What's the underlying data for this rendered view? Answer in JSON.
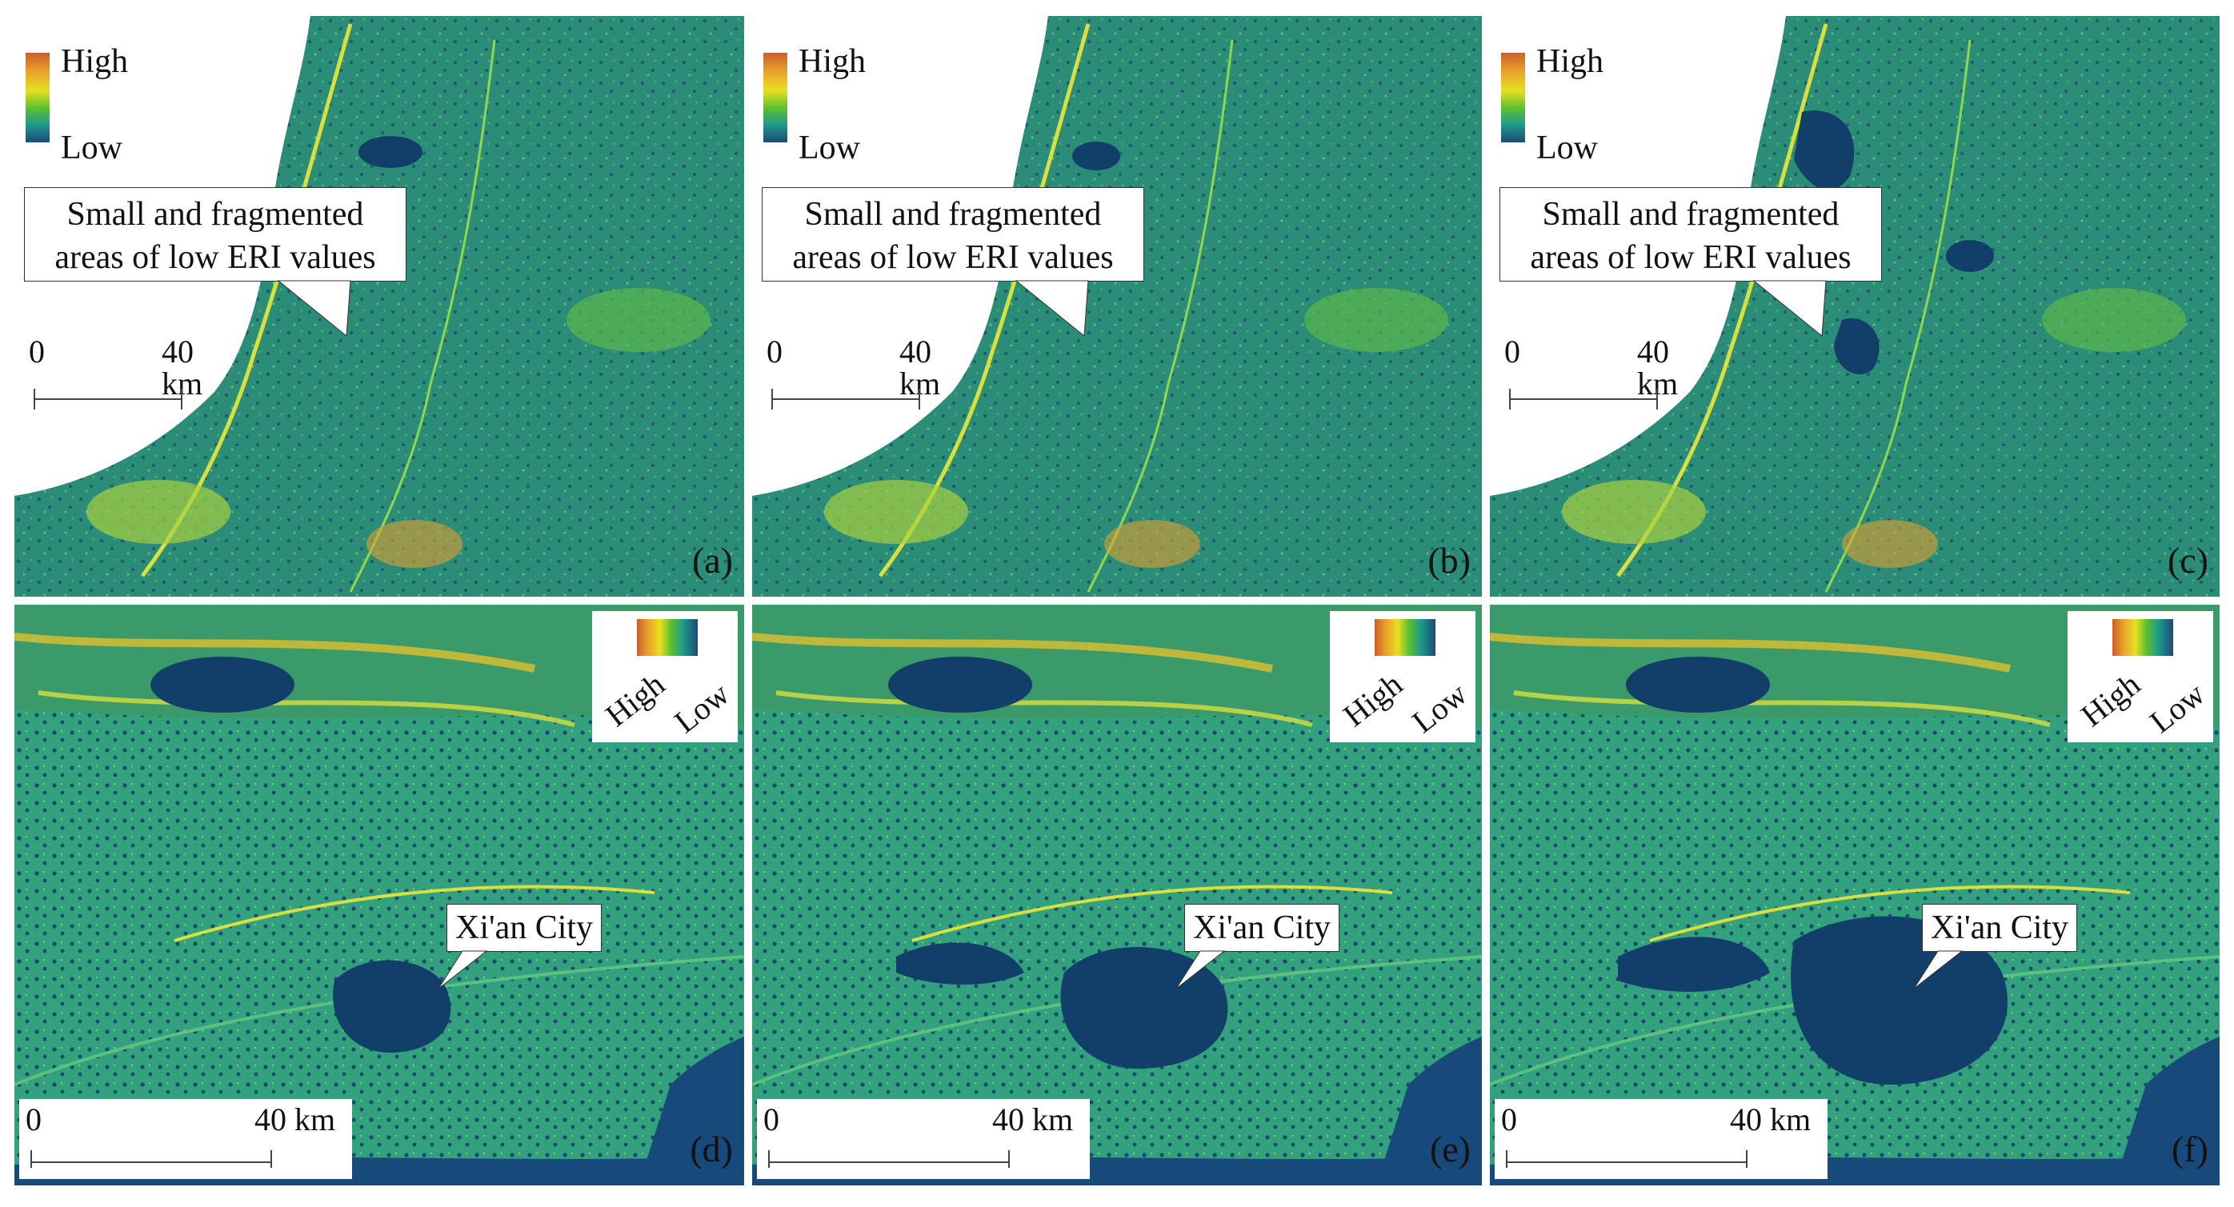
{
  "colors": {
    "high": "#c9602a",
    "mid": "#e8e020",
    "low": "#1a4a7a",
    "background": "#2a8a7a"
  },
  "legend": {
    "high": "High",
    "low": "Low"
  },
  "top_callout": {
    "line1": "Small and fragmented",
    "line2": "areas of low ERI values"
  },
  "city_label": "Xi'an City",
  "scale": {
    "zero": "0",
    "distance": "40 km"
  },
  "panels": [
    {
      "id": "a",
      "label": "(a)"
    },
    {
      "id": "b",
      "label": "(b)"
    },
    {
      "id": "c",
      "label": "(c)"
    },
    {
      "id": "d",
      "label": "(d)"
    },
    {
      "id": "e",
      "label": "(e)"
    },
    {
      "id": "f",
      "label": "(f)"
    }
  ]
}
